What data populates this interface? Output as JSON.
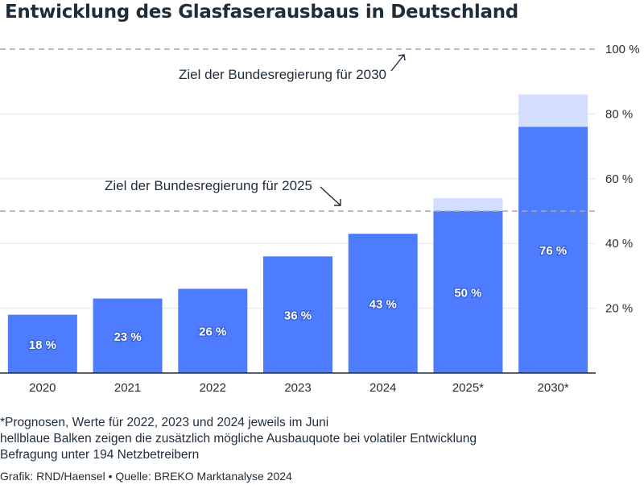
{
  "title": "Entwicklung des Glasfaserausbaus in Deutschland",
  "chart_data": {
    "type": "bar",
    "categories": [
      "2020",
      "2021",
      "2022",
      "2023",
      "2024",
      "2025*",
      "2030*"
    ],
    "values": [
      18,
      23,
      26,
      36,
      43,
      50,
      76
    ],
    "value_labels": [
      "18 %",
      "23 %",
      "26 %",
      "36 %",
      "43 %",
      "50 %",
      "76 %"
    ],
    "upper_potential": [
      null,
      null,
      null,
      null,
      null,
      54,
      86
    ],
    "ylim": [
      0,
      100
    ],
    "yticks": [
      20,
      40,
      60,
      80,
      100
    ],
    "ytick_labels": [
      "20 %",
      "40 %",
      "60 %",
      "80 %",
      "100 %"
    ],
    "grid": true,
    "axis_side": "right",
    "reference_lines": [
      {
        "value": 100,
        "label": "Ziel der Bundesregierung für 2030"
      },
      {
        "value": 50,
        "label": "Ziel der Bundesregierung für 2025"
      }
    ],
    "colors": {
      "bar": "#4d7cfe",
      "potential": "#d3defe",
      "grid": "#e3e6ea",
      "reference": "#a7a7a7",
      "text": "#1f2d3a"
    }
  },
  "notes": [
    "*Prognosen, Werte für 2022, 2023 und 2024 jeweils im Juni",
    "hellblaue Balken zeigen die zusätzlich mögliche Ausbauquote bei volatiler Entwicklung",
    "Befragung unter 194 Netzbetreibern"
  ],
  "credit": "Grafik: RND/Haensel • Quelle: BREKO Marktanalyse 2024"
}
